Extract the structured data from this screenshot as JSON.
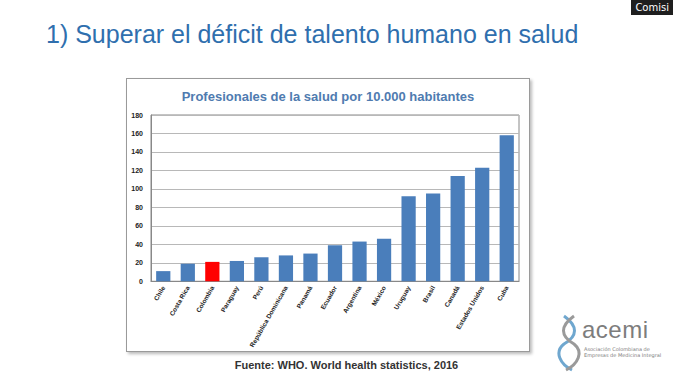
{
  "slide": {
    "title": "1) Superar el déficit de talento humano en salud",
    "source": "Fuente: WHO. World health statistics, 2016",
    "logo": "acemi",
    "logo_subtitle": [
      "Asociación Colombiana de",
      "Empresas de Medicina Integral"
    ],
    "overlay_label": "Comisi"
  },
  "chart_data": {
    "type": "bar",
    "title": "Profesionales de la salud por 10.000 habitantes",
    "categories": [
      "Chile",
      "Costa Rica",
      "Colombia",
      "Paraguay",
      "Perú",
      "República Dominicana",
      "Panamá",
      "Ecuador",
      "Argentina",
      "México",
      "Uruguay",
      "Brasil",
      "Canadá",
      "Estados Unidos",
      "Cuba"
    ],
    "values": [
      11,
      19,
      21,
      22,
      26,
      28,
      30,
      39,
      43,
      46,
      92,
      95,
      114,
      123,
      158
    ],
    "colors": [
      "#4a7ebb",
      "#4a7ebb",
      "#ff0000",
      "#4a7ebb",
      "#4a7ebb",
      "#4a7ebb",
      "#4a7ebb",
      "#4a7ebb",
      "#4a7ebb",
      "#4a7ebb",
      "#4a7ebb",
      "#4a7ebb",
      "#4a7ebb",
      "#4a7ebb",
      "#4a7ebb"
    ],
    "ylim": [
      0,
      180
    ],
    "yticks": [
      0,
      20,
      40,
      60,
      80,
      100,
      120,
      140,
      160,
      180
    ],
    "grid": true
  }
}
